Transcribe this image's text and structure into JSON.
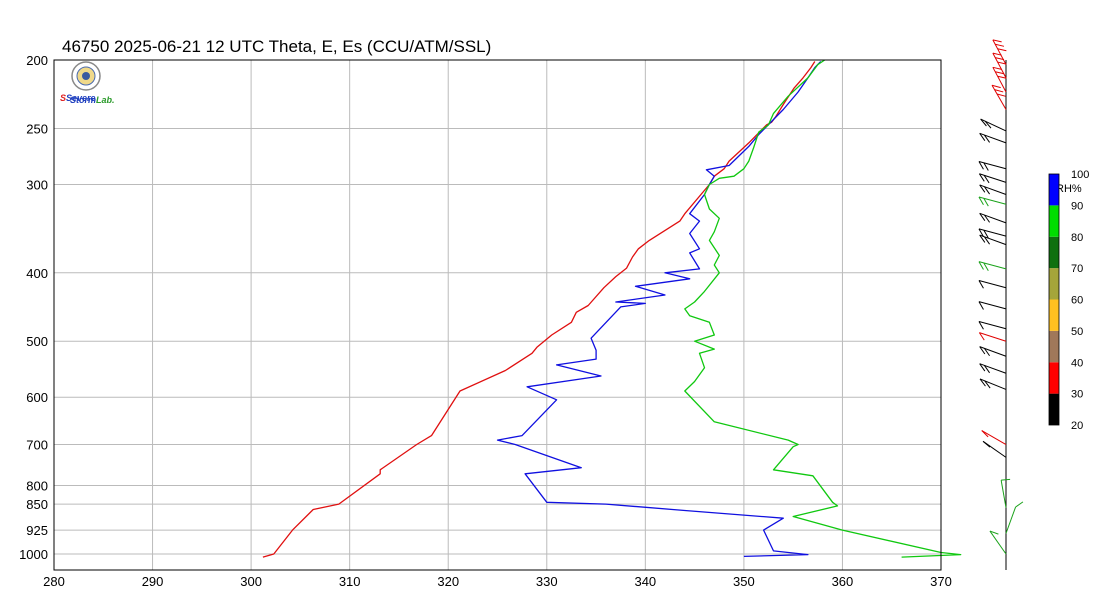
{
  "title": "46750  2025-06-21 12 UTC  Theta, E, Es (CCU/ATM/SSL)",
  "logo": {
    "text_lines": [
      "Severe",
      "Storm",
      "Lab."
    ],
    "colors": {
      "s_red": "#e02020",
      "blue": "#1e3fbf",
      "green": "#2a9a2a"
    }
  },
  "chart_data": {
    "type": "line",
    "title": "46750  2025-06-21 12 UTC  Theta, E, Es (CCU/ATM/SSL)",
    "xlim": [
      280,
      370
    ],
    "x_ticks": [
      280,
      290,
      300,
      310,
      320,
      330,
      340,
      350,
      360,
      370
    ],
    "y_axis_type": "log-pressure (hPa), inverted",
    "ylim": [
      1010,
      200
    ],
    "y_ticks": [
      200,
      250,
      300,
      400,
      500,
      600,
      700,
      800,
      850,
      925,
      1000
    ],
    "grid": true,
    "series": [
      {
        "color": "#e01010",
        "points": [
          [
            301.2,
            1010
          ],
          [
            302.3,
            1000
          ],
          [
            304.2,
            925
          ],
          [
            306.3,
            865
          ],
          [
            308.9,
            850
          ],
          [
            313.1,
            770
          ],
          [
            313.1,
            760
          ],
          [
            316.8,
            700
          ],
          [
            318.3,
            680
          ],
          [
            321.2,
            588
          ],
          [
            325.8,
            550
          ],
          [
            328.5,
            520
          ],
          [
            329.0,
            510
          ],
          [
            330.5,
            490
          ],
          [
            332.5,
            470
          ],
          [
            333.0,
            455
          ],
          [
            334.2,
            445
          ],
          [
            335.8,
            420
          ],
          [
            337.0,
            405
          ],
          [
            338.1,
            394
          ],
          [
            338.7,
            380
          ],
          [
            339.3,
            370
          ],
          [
            340.4,
            360
          ],
          [
            343.5,
            338
          ],
          [
            344.0,
            330
          ],
          [
            346.5,
            300
          ],
          [
            347.0,
            292
          ],
          [
            348.0,
            285
          ],
          [
            348.5,
            278
          ],
          [
            350.5,
            262
          ],
          [
            352.3,
            247
          ],
          [
            352.8,
            245
          ],
          [
            353.2,
            241
          ],
          [
            354.1,
            230
          ],
          [
            355.1,
            219
          ],
          [
            356.0,
            212
          ],
          [
            356.8,
            205
          ],
          [
            357.2,
            201
          ]
        ]
      },
      {
        "color": "#1010e0",
        "points": [
          [
            350.0,
            1008
          ],
          [
            356.5,
            1002
          ],
          [
            353.0,
            990
          ],
          [
            352.0,
            925
          ],
          [
            354.0,
            890
          ],
          [
            344.0,
            868
          ],
          [
            336.0,
            850
          ],
          [
            330.0,
            845
          ],
          [
            327.8,
            770
          ],
          [
            333.5,
            755
          ],
          [
            326.8,
            700
          ],
          [
            325.0,
            690
          ],
          [
            327.5,
            680
          ],
          [
            331.0,
            605
          ],
          [
            328.0,
            580
          ],
          [
            335.5,
            560
          ],
          [
            331.0,
            540
          ],
          [
            335.0,
            530
          ],
          [
            335.0,
            515
          ],
          [
            334.5,
            495
          ],
          [
            337.5,
            447
          ],
          [
            340.0,
            442
          ],
          [
            337.0,
            440
          ],
          [
            342.0,
            430
          ],
          [
            339.0,
            418
          ],
          [
            344.5,
            408
          ],
          [
            342.0,
            400
          ],
          [
            345.5,
            395
          ],
          [
            344.5,
            375
          ],
          [
            345.5,
            370
          ],
          [
            344.5,
            352
          ],
          [
            345.5,
            338
          ],
          [
            344.5,
            330
          ],
          [
            346.0,
            310
          ],
          [
            346.5,
            300
          ],
          [
            347.0,
            292
          ],
          [
            346.2,
            286
          ],
          [
            348.5,
            282
          ],
          [
            350.5,
            265
          ],
          [
            351.5,
            255
          ],
          [
            354.0,
            235
          ],
          [
            355.5,
            222
          ],
          [
            356.5,
            212
          ],
          [
            357.2,
            205
          ],
          [
            357.8,
            201
          ]
        ]
      },
      {
        "color": "#10c810",
        "points": [
          [
            366.0,
            1010
          ],
          [
            372.0,
            1002
          ],
          [
            370.0,
            995
          ],
          [
            360.0,
            925
          ],
          [
            355.0,
            885
          ],
          [
            359.5,
            855
          ],
          [
            359.0,
            845
          ],
          [
            357.0,
            775
          ],
          [
            353.0,
            760
          ],
          [
            355.0,
            705
          ],
          [
            355.5,
            700
          ],
          [
            354.5,
            690
          ],
          [
            347.0,
            650
          ],
          [
            344.0,
            588
          ],
          [
            345.0,
            570
          ],
          [
            346.0,
            545
          ],
          [
            345.5,
            520
          ],
          [
            347.0,
            513
          ],
          [
            345.0,
            500
          ],
          [
            347.0,
            490
          ],
          [
            346.5,
            470
          ],
          [
            344.5,
            460
          ],
          [
            344.0,
            450
          ],
          [
            345.0,
            440
          ],
          [
            346.0,
            425
          ],
          [
            347.5,
            400
          ],
          [
            347.0,
            390
          ],
          [
            347.5,
            378
          ],
          [
            346.5,
            360
          ],
          [
            347.0,
            350
          ],
          [
            347.5,
            335
          ],
          [
            346.5,
            325
          ],
          [
            346.0,
            310
          ],
          [
            346.5,
            300
          ],
          [
            347.5,
            294
          ],
          [
            349.0,
            292
          ],
          [
            350.0,
            285
          ],
          [
            350.5,
            278
          ],
          [
            351.0,
            266
          ],
          [
            351.5,
            253
          ],
          [
            352.5,
            247
          ],
          [
            353.0,
            238
          ],
          [
            354.5,
            225
          ],
          [
            356.5,
            212
          ],
          [
            357.5,
            203
          ],
          [
            358.2,
            200
          ]
        ]
      }
    ]
  },
  "wind_profile": {
    "barbs": [
      {
        "p": 203,
        "angle": 28,
        "n": 3,
        "color": "#e00000"
      },
      {
        "p": 212,
        "angle": 28,
        "n": 3,
        "color": "#e00000"
      },
      {
        "p": 222,
        "angle": 28,
        "n": 3,
        "color": "#e00000"
      },
      {
        "p": 235,
        "angle": 30,
        "n": 3,
        "color": "#e00000"
      },
      {
        "p": 252,
        "angle": 65,
        "n": 2,
        "color": "#000000"
      },
      {
        "p": 262,
        "angle": 70,
        "n": 2,
        "color": "#000000"
      },
      {
        "p": 285,
        "angle": 75,
        "n": 2,
        "color": "#000000"
      },
      {
        "p": 298,
        "angle": 72,
        "n": 2,
        "color": "#000000"
      },
      {
        "p": 310,
        "angle": 70,
        "n": 2,
        "color": "#000000"
      },
      {
        "p": 320,
        "angle": 75,
        "n": 2,
        "color": "#1aa21a"
      },
      {
        "p": 340,
        "angle": 70,
        "n": 2,
        "color": "#000000"
      },
      {
        "p": 355,
        "angle": 75,
        "n": 2,
        "color": "#000000"
      },
      {
        "p": 365,
        "angle": 70,
        "n": 2,
        "color": "#000000"
      },
      {
        "p": 395,
        "angle": 75,
        "n": 2,
        "color": "#1aa21a"
      },
      {
        "p": 420,
        "angle": 75,
        "n": 1,
        "color": "#000000"
      },
      {
        "p": 450,
        "angle": 75,
        "n": 1,
        "color": "#000000"
      },
      {
        "p": 480,
        "angle": 75,
        "n": 1,
        "color": "#000000"
      },
      {
        "p": 500,
        "angle": 72,
        "n": 1,
        "color": "#e00000"
      },
      {
        "p": 525,
        "angle": 70,
        "n": 2,
        "color": "#000000"
      },
      {
        "p": 555,
        "angle": 70,
        "n": 2,
        "color": "#000000"
      },
      {
        "p": 585,
        "angle": 68,
        "n": 2,
        "color": "#000000"
      },
      {
        "p": 700,
        "angle": 60,
        "n": 1,
        "color": "#e00000"
      },
      {
        "p": 730,
        "angle": 55,
        "n": 1,
        "color": "#000000"
      },
      {
        "p": 860,
        "angle": 10,
        "n": 1,
        "color": "#1aa21a"
      },
      {
        "p": 935,
        "angle": -20,
        "n": 1,
        "color": "#1aa21a"
      },
      {
        "p": 1000,
        "angle": 35,
        "n": 1,
        "color": "#1aa21a"
      }
    ]
  },
  "colorbar": {
    "label": "RH%",
    "ticks": [
      20,
      30,
      40,
      50,
      60,
      70,
      80,
      90,
      100
    ],
    "segments": [
      {
        "from": 20,
        "to": 30,
        "color": "#000000"
      },
      {
        "from": 30,
        "to": 40,
        "color": "#ff0000"
      },
      {
        "from": 40,
        "to": 50,
        "color": "#a0785a"
      },
      {
        "from": 50,
        "to": 60,
        "color": "#ffc020"
      },
      {
        "from": 60,
        "to": 70,
        "color": "#a5a53a"
      },
      {
        "from": 70,
        "to": 80,
        "color": "#0f700f"
      },
      {
        "from": 80,
        "to": 90,
        "color": "#00dd00"
      },
      {
        "from": 90,
        "to": 100,
        "color": "#0000ff"
      }
    ]
  }
}
